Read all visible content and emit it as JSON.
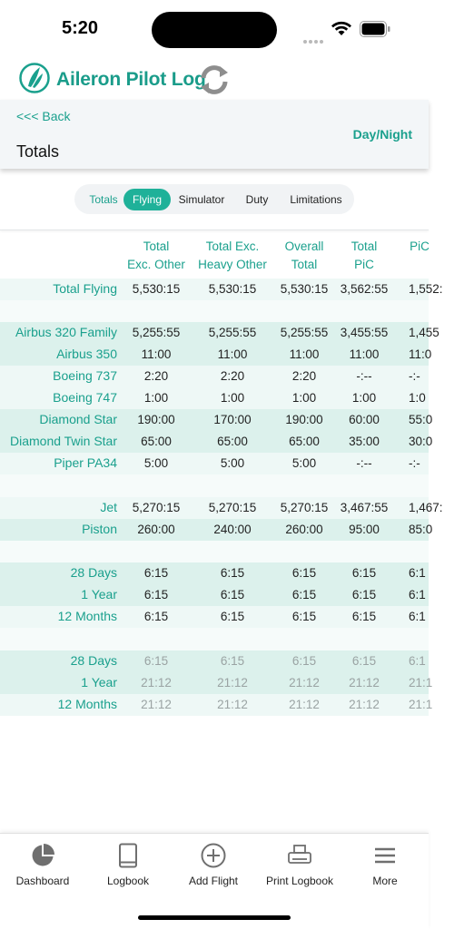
{
  "status": {
    "time": "5:20"
  },
  "app": {
    "title": "Aileron Pilot Log"
  },
  "subheader": {
    "back": "<<< Back",
    "title": "Totals",
    "mode": "Day/Night"
  },
  "tabs": [
    {
      "label": "Totals"
    },
    {
      "label": "Flying"
    },
    {
      "label": "Simulator"
    },
    {
      "label": "Duty"
    },
    {
      "label": "Limitations"
    }
  ],
  "active_tab": "Flying",
  "columns": [
    {
      "l1": "Total",
      "l2": "Exc. Other"
    },
    {
      "l1": "Total Exc.",
      "l2": "Heavy Other"
    },
    {
      "l1": "Overall",
      "l2": "Total"
    },
    {
      "l1": "Total",
      "l2": "PiC"
    },
    {
      "l1": "PiC",
      "l2": ""
    }
  ],
  "rows": [
    {
      "label": "Total Flying",
      "values": [
        "5,530:15",
        "5,530:15",
        "5,530:15",
        "3,562:55",
        "1,552:"
      ]
    },
    {
      "label": "Airbus 320 Family",
      "values": [
        "5,255:55",
        "5,255:55",
        "5,255:55",
        "3,455:55",
        "1,455"
      ]
    },
    {
      "label": "Airbus 350",
      "values": [
        "11:00",
        "11:00",
        "11:00",
        "11:00",
        "11:0"
      ]
    },
    {
      "label": "Boeing 737",
      "values": [
        "2:20",
        "2:20",
        "2:20",
        "-:--",
        "-:-"
      ]
    },
    {
      "label": "Boeing 747",
      "values": [
        "1:00",
        "1:00",
        "1:00",
        "1:00",
        "1:0"
      ]
    },
    {
      "label": "Diamond Star",
      "values": [
        "190:00",
        "170:00",
        "190:00",
        "60:00",
        "55:0"
      ]
    },
    {
      "label": "Diamond Twin Star",
      "values": [
        "65:00",
        "65:00",
        "65:00",
        "35:00",
        "30:0"
      ]
    },
    {
      "label": "Piper PA34",
      "values": [
        "5:00",
        "5:00",
        "5:00",
        "-:--",
        "-:-"
      ]
    },
    {
      "label": "Jet",
      "values": [
        "5,270:15",
        "5,270:15",
        "5,270:15",
        "3,467:55",
        "1,467:"
      ]
    },
    {
      "label": "Piston",
      "values": [
        "260:00",
        "240:00",
        "260:00",
        "95:00",
        "85:0"
      ]
    },
    {
      "label": "28 Days",
      "values": [
        "6:15",
        "6:15",
        "6:15",
        "6:15",
        "6:1"
      ]
    },
    {
      "label": "1 Year",
      "values": [
        "6:15",
        "6:15",
        "6:15",
        "6:15",
        "6:1"
      ]
    },
    {
      "label": "12 Months",
      "values": [
        "6:15",
        "6:15",
        "6:15",
        "6:15",
        "6:1"
      ]
    },
    {
      "label": "28 Days",
      "values": [
        "6:15",
        "6:15",
        "6:15",
        "6:15",
        "6:1"
      ]
    },
    {
      "label": "1 Year",
      "values": [
        "21:12",
        "21:12",
        "21:12",
        "21:12",
        "21:1"
      ]
    },
    {
      "label": "12 Months",
      "values": [
        "21:12",
        "21:12",
        "21:12",
        "21:12",
        "21:1"
      ]
    }
  ],
  "nav": [
    {
      "label": "Dashboard",
      "icon": "pie-chart-icon"
    },
    {
      "label": "Logbook",
      "icon": "book-icon"
    },
    {
      "label": "Add Flight",
      "icon": "plus-circle-icon"
    },
    {
      "label": "Print Logbook",
      "icon": "printer-icon"
    },
    {
      "label": "More",
      "icon": "menu-icon"
    }
  ],
  "colors": {
    "accent": "#1aa08d",
    "active_tab": "#1fb199",
    "row_light": "#eef8f6",
    "row_dark": "#dcf1ec"
  }
}
